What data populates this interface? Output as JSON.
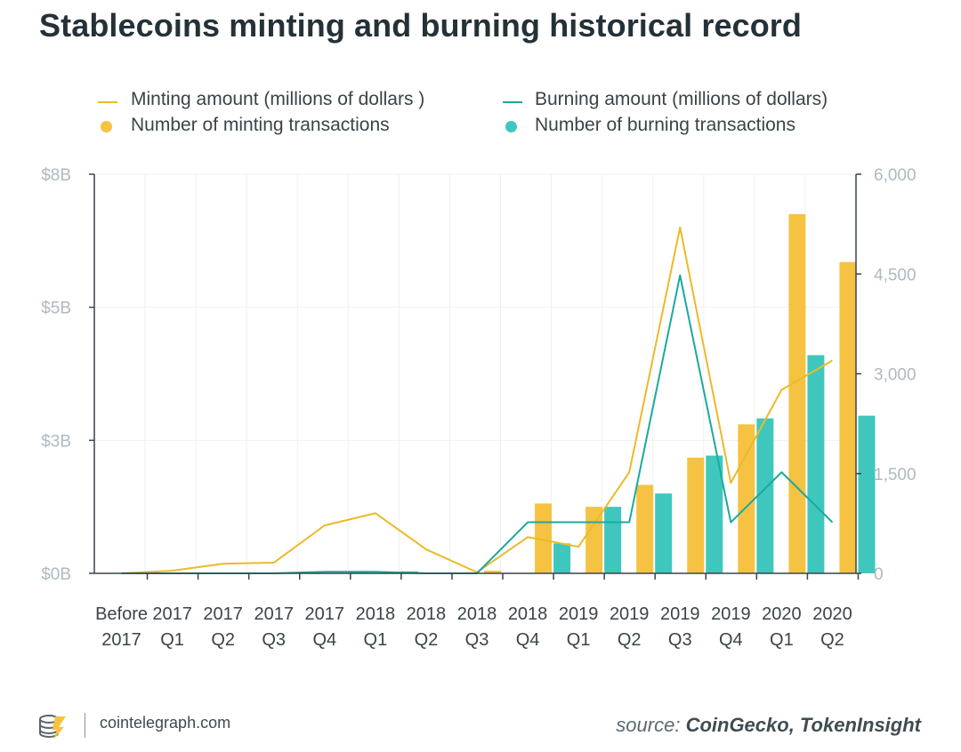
{
  "title": "Stablecoins minting and burning historical record",
  "legend": {
    "minting_amount": "Minting amount (millions of dollars )",
    "burning_amount": "Burning amount (millions of dollars)",
    "minting_tx": "Number of minting transactions",
    "burning_tx": "Number of burning transactions"
  },
  "colors": {
    "minting": "#f5c242",
    "minting_line": "#ecba28",
    "burning": "#3fc7bd",
    "burning_line": "#1aa9a0",
    "axis_text": "#aebabf"
  },
  "footer": {
    "logo_icon": "cointelegraph-logo-icon",
    "site": "cointelegraph.com",
    "source_prefix": "source:",
    "source_names": "CoinGecko, TokenInsight"
  },
  "chart_data": {
    "type": "bar",
    "categories": [
      [
        "Before",
        "2017"
      ],
      [
        "2017",
        "Q1"
      ],
      [
        "2017",
        "Q2"
      ],
      [
        "2017",
        "Q3"
      ],
      [
        "2017",
        "Q4"
      ],
      [
        "2018",
        "Q1"
      ],
      [
        "2018",
        "Q2"
      ],
      [
        "2018",
        "Q3"
      ],
      [
        "2018",
        "Q4"
      ],
      [
        "2019",
        "Q1"
      ],
      [
        "2019",
        "Q2"
      ],
      [
        "2019",
        "Q3"
      ],
      [
        "2019",
        "Q4"
      ],
      [
        "2020",
        "Q1"
      ],
      [
        "2020",
        "Q2"
      ]
    ],
    "y_left": {
      "ticks": [
        0,
        2.5,
        5,
        7.5
      ],
      "tick_labels": [
        "$0B",
        "$3B",
        "$5B",
        "$8B"
      ],
      "range": [
        0,
        7.5
      ]
    },
    "y_right": {
      "ticks": [
        0,
        1500,
        3000,
        4500,
        6000
      ],
      "tick_labels": [
        "0",
        "1,500",
        "3,000",
        "4,500",
        "6,000"
      ],
      "range": [
        0,
        6000
      ]
    },
    "grid": true,
    "legend_position": "top",
    "series": [
      {
        "name": "Minting amount (millions of dollars )",
        "type": "line",
        "axis": "left",
        "values": [
          0,
          0.05,
          0.18,
          0.2,
          0.9,
          1.13,
          0.45,
          0.02,
          0.68,
          0.5,
          1.9,
          6.5,
          1.7,
          3.45,
          4.0
        ]
      },
      {
        "name": "Burning amount (millions of dollars)",
        "type": "line",
        "axis": "left",
        "values": [
          0,
          0,
          0,
          0,
          0.03,
          0.03,
          0,
          0,
          0.96,
          0.96,
          0.96,
          5.6,
          0.96,
          1.9,
          0.96
        ]
      },
      {
        "name": "Number of minting transactions",
        "type": "bar",
        "axis": "right",
        "values": [
          0,
          0,
          0,
          0,
          0,
          0,
          0,
          40,
          1050,
          1000,
          1330,
          1740,
          2240,
          5400,
          4680
        ]
      },
      {
        "name": "Number of burning transactions",
        "type": "bar",
        "axis": "right",
        "values": [
          0,
          0,
          0,
          0,
          30,
          30,
          0,
          0,
          450,
          1000,
          1200,
          1770,
          2330,
          3280,
          2370
        ]
      }
    ]
  }
}
